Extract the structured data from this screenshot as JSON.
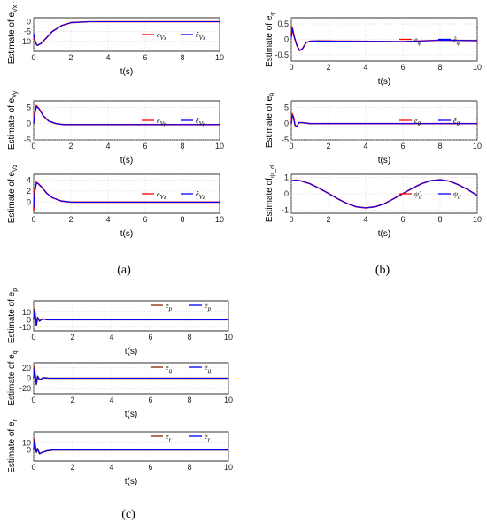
{
  "captions": [
    "(a)",
    "(b)",
    "(c)"
  ],
  "colors": {
    "true_series": "#ff0000",
    "estimate_series": "#0000ff",
    "true_series_c": "#8b2500",
    "axes": "#000000",
    "grid": "#c8c8c8"
  },
  "chart_data": [
    {
      "id": "a1",
      "type": "line",
      "ylabel": "Estimate of e_Vx",
      "ylabel_main": "Estimate of e",
      "ylabel_sub": "Vx",
      "xlabel": "t(s)",
      "xlim": [
        0,
        10
      ],
      "ylim": [
        -15,
        2
      ],
      "xticks": [
        0,
        2,
        4,
        6,
        8,
        10
      ],
      "yticks": [
        -10,
        -5,
        0
      ],
      "ytick_labels": [
        "-10",
        "-5",
        "0"
      ],
      "grid": true,
      "legend_position": "right",
      "series": [
        {
          "name": "e_Vx",
          "label_main": "e",
          "label_sub": "Vx",
          "color": "#ff0000",
          "x": [
            0,
            0.1,
            0.2,
            0.4,
            0.7,
            1.0,
            1.5,
            2.0,
            3.0,
            10
          ],
          "y": [
            -7,
            -11,
            -12,
            -11,
            -8,
            -5,
            -2,
            -0.5,
            0,
            0
          ]
        },
        {
          "name": "ê_Vx",
          "label_main": "ê",
          "label_sub": "Vx",
          "color": "#0000ff",
          "x": [
            0,
            0.1,
            0.2,
            0.4,
            0.7,
            1.0,
            1.5,
            2.0,
            3.0,
            10
          ],
          "y": [
            -6,
            -10.5,
            -12,
            -11,
            -8,
            -5,
            -2,
            -0.5,
            0,
            0
          ]
        }
      ]
    },
    {
      "id": "a2",
      "type": "line",
      "ylabel": "Estimate of e_Vy",
      "ylabel_main": "Estimate of e",
      "ylabel_sub": "Vy",
      "xlabel": "t(s)",
      "xlim": [
        0,
        10
      ],
      "ylim": [
        -5,
        7
      ],
      "xticks": [
        0,
        2,
        4,
        6,
        8,
        10
      ],
      "yticks": [
        -5,
        0,
        5
      ],
      "ytick_labels": [
        "-5",
        "0",
        "5"
      ],
      "grid": true,
      "legend_position": "right",
      "series": [
        {
          "name": "e_Vy",
          "label_main": "e",
          "label_sub": "Vy",
          "color": "#ff0000",
          "x": [
            0,
            0.05,
            0.15,
            0.3,
            0.5,
            0.8,
            1.2,
            1.6,
            2.0,
            10
          ],
          "y": [
            0,
            3,
            5.5,
            4.5,
            2.5,
            0.8,
            0,
            -0.3,
            -0.3,
            -0.3
          ]
        },
        {
          "name": "ê_Vy",
          "label_main": "ê",
          "label_sub": "Vy",
          "color": "#0000ff",
          "x": [
            0,
            0.05,
            0.15,
            0.3,
            0.5,
            0.8,
            1.2,
            1.6,
            2.0,
            10
          ],
          "y": [
            0,
            2.5,
            5.2,
            4.5,
            2.5,
            0.8,
            0,
            -0.3,
            -0.3,
            -0.3
          ]
        }
      ]
    },
    {
      "id": "a3",
      "type": "line",
      "ylabel": "Estimate of e_Vz",
      "ylabel_main": "Estimate of e",
      "ylabel_sub": "Vz",
      "xlabel": "t(s)",
      "xlim": [
        0,
        10
      ],
      "ylim": [
        -2,
        5
      ],
      "xticks": [
        0,
        2,
        4,
        6,
        8,
        10
      ],
      "yticks": [
        0,
        2,
        4
      ],
      "ytick_labels": [
        "0",
        "2",
        "4"
      ],
      "grid": true,
      "legend_position": "right",
      "series": [
        {
          "name": "e_Vz",
          "label_main": "e",
          "label_sub": "Vz",
          "color": "#ff0000",
          "x": [
            0,
            0.05,
            0.15,
            0.25,
            0.4,
            0.7,
            1.0,
            1.5,
            2.0,
            10
          ],
          "y": [
            -1.5,
            2,
            3.6,
            3.3,
            2.8,
            1.6,
            0.8,
            0.2,
            0,
            0
          ]
        },
        {
          "name": "ê_Vz",
          "label_main": "ê",
          "label_sub": "Vz",
          "color": "#0000ff",
          "x": [
            0,
            0.05,
            0.15,
            0.25,
            0.4,
            0.7,
            1.0,
            1.5,
            2.0,
            10
          ],
          "y": [
            -1,
            1.5,
            3.4,
            3.3,
            2.8,
            1.6,
            0.8,
            0.2,
            0,
            0
          ]
        }
      ]
    },
    {
      "id": "b1",
      "type": "line",
      "ylabel": "Estimate of e_φ",
      "ylabel_main": "Estimate of e",
      "ylabel_sub": "φ",
      "xlabel": "t(s)",
      "xlim": [
        0,
        10
      ],
      "ylim": [
        -0.7,
        0.7
      ],
      "xticks": [
        0,
        2,
        4,
        6,
        8,
        10
      ],
      "yticks": [
        -0.5,
        0,
        0.5
      ],
      "ytick_labels": [
        "-0.5",
        "0",
        "0.5"
      ],
      "grid": true,
      "legend_position": "right",
      "series": [
        {
          "name": "e_φ",
          "label_main": "e",
          "label_sub": "φ",
          "color": "#ff0000",
          "x": [
            0,
            0.05,
            0.15,
            0.3,
            0.45,
            0.6,
            0.8,
            1.0,
            1.5,
            3,
            6,
            8,
            10
          ],
          "y": [
            0.1,
            0.4,
            0.1,
            -0.2,
            -0.36,
            -0.3,
            -0.1,
            -0.06,
            -0.05,
            -0.06,
            -0.07,
            -0.03,
            -0.04
          ]
        },
        {
          "name": "ê_φ",
          "label_main": "ê",
          "label_sub": "φ",
          "color": "#0000ff",
          "x": [
            0,
            0.05,
            0.15,
            0.3,
            0.45,
            0.6,
            0.8,
            1.0,
            1.5,
            3,
            6,
            8,
            10
          ],
          "y": [
            0.05,
            0.35,
            0.1,
            -0.2,
            -0.35,
            -0.3,
            -0.1,
            -0.06,
            -0.05,
            -0.06,
            -0.07,
            -0.03,
            -0.04
          ]
        }
      ]
    },
    {
      "id": "b2",
      "type": "line",
      "ylabel": "Estimate of e_θ",
      "ylabel_main": "Estimate of e",
      "ylabel_sub": "θ",
      "xlabel": "t(s)",
      "xlim": [
        0,
        10
      ],
      "ylim": [
        -5,
        7
      ],
      "xticks": [
        0,
        2,
        4,
        6,
        8,
        10
      ],
      "yticks": [
        -5,
        0,
        5
      ],
      "ytick_labels": [
        "-5",
        "0",
        "5"
      ],
      "grid": true,
      "legend_position": "right",
      "series": [
        {
          "name": "e_θ",
          "label_main": "e",
          "label_sub": "θ",
          "color": "#ff0000",
          "x": [
            0,
            0.05,
            0.12,
            0.2,
            0.3,
            0.4,
            0.6,
            1.0,
            10
          ],
          "y": [
            0,
            3,
            2,
            -0.5,
            -1,
            0.3,
            0.3,
            0,
            0
          ]
        },
        {
          "name": "ê_θ",
          "label_main": "ê",
          "label_sub": "θ",
          "color": "#0000ff",
          "x": [
            0,
            0.05,
            0.12,
            0.2,
            0.3,
            0.4,
            0.6,
            1.0,
            10
          ],
          "y": [
            0,
            2.5,
            1.8,
            -0.5,
            -1,
            0.3,
            0.3,
            0,
            0
          ]
        }
      ]
    },
    {
      "id": "b3",
      "type": "line",
      "ylabel": "Estimate of ψ'_d",
      "ylabel_main": "Estimate of",
      "ylabel_sub": "ψ'_d",
      "xlabel": "t(s)",
      "xlim": [
        0,
        10
      ],
      "ylim": [
        -1.2,
        1.2
      ],
      "xticks": [
        0,
        2,
        4,
        6,
        8,
        10
      ],
      "yticks": [
        -1,
        0,
        1
      ],
      "ytick_labels": [
        "-1",
        "0",
        "1"
      ],
      "grid": true,
      "legend_position": "right",
      "series": [
        {
          "name": "ψ̂_d",
          "label_main": "ψ̂",
          "label_sub": "d",
          "color": "#ff0000",
          "x": [
            0,
            0.25,
            0.5,
            1,
            1.5,
            2,
            2.5,
            3,
            3.5,
            4,
            4.5,
            5,
            5.5,
            6,
            6.5,
            7,
            7.5,
            8,
            8.5,
            9,
            9.5,
            10
          ],
          "y": [
            0.8,
            0.84,
            0.8,
            0.62,
            0.34,
            0.02,
            -0.31,
            -0.6,
            -0.8,
            -0.87,
            -0.8,
            -0.61,
            -0.31,
            0.01,
            0.33,
            0.62,
            0.81,
            0.87,
            0.78,
            0.55,
            0.25,
            -0.1
          ]
        },
        {
          "name": "ψ_d",
          "label_main": "ψ",
          "label_sub": "d",
          "color": "#0000ff",
          "x": [
            0,
            0.25,
            0.5,
            1,
            1.5,
            2,
            2.5,
            3,
            3.5,
            4,
            4.5,
            5,
            5.5,
            6,
            6.5,
            7,
            7.5,
            8,
            8.5,
            9,
            9.5,
            10
          ],
          "y": [
            0.8,
            0.84,
            0.8,
            0.62,
            0.34,
            0.02,
            -0.31,
            -0.6,
            -0.8,
            -0.87,
            -0.8,
            -0.61,
            -0.31,
            0.01,
            0.33,
            0.62,
            0.81,
            0.87,
            0.78,
            0.55,
            0.25,
            -0.1
          ]
        }
      ]
    },
    {
      "id": "c1",
      "type": "line",
      "ylabel": "Estimate of e_p",
      "ylabel_main": "Estimate of e",
      "ylabel_sub": "p",
      "xlabel": "t(s)",
      "xlim": [
        0,
        10
      ],
      "ylim": [
        -15,
        25
      ],
      "xticks": [
        0,
        2,
        4,
        6,
        8,
        10
      ],
      "yticks": [
        -10,
        0,
        10
      ],
      "ytick_labels": [
        "-10",
        "0",
        "10"
      ],
      "grid": true,
      "legend_position": "top-right",
      "series": [
        {
          "name": "e_p",
          "label_main": "e",
          "label_sub": "p",
          "color": "#8b2500",
          "x": [
            0,
            0.04,
            0.08,
            0.14,
            0.2,
            0.3,
            0.45,
            0.7,
            1.0,
            10
          ],
          "y": [
            0,
            14,
            6,
            -8,
            3,
            -2,
            1,
            0,
            0,
            0
          ]
        },
        {
          "name": "ê_p",
          "label_main": "ê",
          "label_sub": "p",
          "color": "#0000ff",
          "x": [
            0,
            0.04,
            0.08,
            0.14,
            0.2,
            0.3,
            0.45,
            0.7,
            1.0,
            10
          ],
          "y": [
            0,
            12,
            5,
            -7,
            3,
            -2,
            1,
            0,
            0,
            0
          ]
        }
      ]
    },
    {
      "id": "c2",
      "type": "line",
      "ylabel": "Estimate of e_q",
      "ylabel_main": "Estimate of e",
      "ylabel_sub": "q",
      "xlabel": "t(s)",
      "xlim": [
        0,
        10
      ],
      "ylim": [
        -30,
        30
      ],
      "xticks": [
        0,
        2,
        4,
        6,
        8,
        10
      ],
      "yticks": [
        -20,
        0,
        20
      ],
      "ytick_labels": [
        "-20",
        "0",
        "20"
      ],
      "grid": true,
      "legend_position": "top-right",
      "series": [
        {
          "name": "e_q",
          "label_main": "e",
          "label_sub": "q",
          "color": "#8b2500",
          "x": [
            0,
            0.04,
            0.08,
            0.14,
            0.2,
            0.3,
            0.5,
            0.8,
            10
          ],
          "y": [
            0,
            22,
            5,
            -12,
            4,
            -3,
            1,
            0,
            0
          ]
        },
        {
          "name": "ê_q",
          "label_main": "ê",
          "label_sub": "q",
          "color": "#0000ff",
          "x": [
            0,
            0.04,
            0.08,
            0.14,
            0.2,
            0.3,
            0.5,
            0.8,
            10
          ],
          "y": [
            0,
            18,
            4,
            -10,
            4,
            -3,
            1,
            0,
            0
          ]
        }
      ]
    },
    {
      "id": "c3",
      "type": "line",
      "ylabel": "Estimate of e_r",
      "ylabel_main": "Estimate of e",
      "ylabel_sub": "r",
      "xlabel": "t(s)",
      "xlim": [
        0,
        10
      ],
      "ylim": [
        -15,
        25
      ],
      "xticks": [
        0,
        2,
        4,
        6,
        8,
        10
      ],
      "yticks": [
        0,
        10
      ],
      "ytick_labels": [
        "0",
        "10"
      ],
      "grid": true,
      "legend_position": "top-right",
      "series": [
        {
          "name": "e_r",
          "label_main": "e",
          "label_sub": "r",
          "color": "#8b2500",
          "x": [
            0,
            0.04,
            0.08,
            0.14,
            0.2,
            0.3,
            0.45,
            0.7,
            1.0,
            10
          ],
          "y": [
            0,
            15,
            6,
            -3,
            2,
            -5,
            -3,
            -1,
            0,
            0
          ]
        },
        {
          "name": "ê_r",
          "label_main": "ê",
          "label_sub": "r",
          "color": "#0000ff",
          "x": [
            0,
            0.04,
            0.08,
            0.14,
            0.2,
            0.3,
            0.45,
            0.7,
            1.0,
            10
          ],
          "y": [
            0,
            12,
            5,
            -3,
            2,
            -5,
            -3,
            -1,
            0,
            0
          ]
        }
      ]
    }
  ]
}
